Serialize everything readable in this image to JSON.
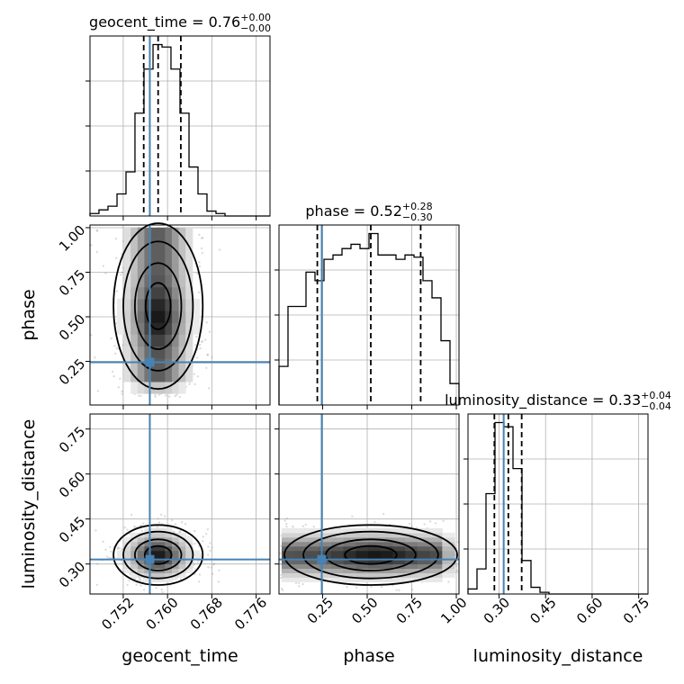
{
  "chart_data": {
    "type": "corner",
    "parameters": [
      "geocent_time",
      "phase",
      "luminosity_distance"
    ],
    "truths": {
      "geocent_time": 0.7568,
      "phase": 0.245,
      "luminosity_distance": 0.315
    },
    "colors": {
      "truth": "#4682b4",
      "contour": "#000000",
      "hist": "#000000"
    },
    "grid": true,
    "diagonal": [
      {
        "param": "geocent_time",
        "title_prefix": "geocent_time = 0.76",
        "title_plus": "+0.00",
        "title_minus": "−0.00",
        "median": 0.7583,
        "q16": 0.7557,
        "q84": 0.7624,
        "range": [
          0.746,
          0.7785
        ],
        "hist_bins": [
          0.746,
          0.74762,
          0.74925,
          0.75088,
          0.7525,
          0.75412,
          0.75575,
          0.75738,
          0.759,
          0.76062,
          0.76225,
          0.76388,
          0.7655,
          0.76712,
          0.76875,
          0.77038,
          0.772,
          0.77362,
          0.77525,
          0.77688,
          0.7785
        ],
        "hist_counts": [
          2,
          5,
          8,
          18,
          36,
          84,
          120,
          140,
          138,
          120,
          84,
          40,
          18,
          4,
          2,
          0,
          0,
          0,
          0,
          0
        ]
      },
      {
        "param": "phase",
        "title_prefix": "phase = 0.52",
        "title_plus": "+0.28",
        "title_minus": "−0.30",
        "median": 0.52,
        "q16": 0.22,
        "q84": 0.8,
        "range": [
          0.005,
          1.015
        ],
        "hist_bins": [
          0.005,
          0.0555,
          0.106,
          0.1565,
          0.207,
          0.2575,
          0.308,
          0.3585,
          0.409,
          0.4595,
          0.51,
          0.5605,
          0.611,
          0.6615,
          0.712,
          0.7625,
          0.813,
          0.8635,
          0.914,
          0.9645,
          1.015
        ],
        "hist_counts": [
          36,
          92,
          92,
          124,
          116,
          136,
          140,
          146,
          150,
          146,
          160,
          140,
          140,
          136,
          140,
          138,
          116,
          100,
          60,
          20
        ]
      },
      {
        "param": "luminosity_distance",
        "title_prefix": "luminosity_distance = 0.33",
        "title_plus": "+0.04",
        "title_minus": "−0.04",
        "median": 0.33,
        "q16": 0.285,
        "q84": 0.373,
        "range": [
          0.2,
          0.78
        ],
        "hist_bins": [
          0.2,
          0.229,
          0.258,
          0.287,
          0.316,
          0.345,
          0.374,
          0.403,
          0.432,
          0.461,
          0.49,
          0.519,
          0.548,
          0.577,
          0.606,
          0.635,
          0.664,
          0.693,
          0.722,
          0.751,
          0.78
        ],
        "hist_counts": [
          6,
          30,
          120,
          205,
          200,
          150,
          40,
          8,
          2,
          0,
          0,
          0,
          0,
          0,
          0,
          0,
          0,
          0,
          0,
          0
        ]
      }
    ],
    "axes": {
      "geocent_time": {
        "ticks": [
          0.752,
          0.76,
          0.768,
          0.776
        ],
        "tick_labels": [
          "0.752",
          "0.760",
          "0.768",
          "0.776"
        ],
        "label": "geocent_time"
      },
      "phase": {
        "ticks": [
          0.25,
          0.5,
          0.75,
          1.0
        ],
        "tick_labels": [
          "0.25",
          "0.50",
          "0.75",
          "1.00"
        ],
        "label": "phase"
      },
      "luminosity_distance": {
        "ticks": [
          0.3,
          0.45,
          0.6,
          0.75
        ],
        "tick_labels": [
          "0.30",
          "0.45",
          "0.60",
          "0.75"
        ],
        "label": "luminosity_distance"
      }
    },
    "posterior_2d": [
      {
        "x": "geocent_time",
        "y": "phase",
        "x_center": 0.7583,
        "x_sigma": 0.0031,
        "y_center": 0.55,
        "y_sigma": 0.32
      },
      {
        "x": "geocent_time",
        "y": "luminosity_distance",
        "x_center": 0.7583,
        "x_sigma": 0.0031,
        "y_center": 0.33,
        "y_sigma": 0.04
      },
      {
        "x": "phase",
        "y": "luminosity_distance",
        "x_center": 0.52,
        "x_sigma": 0.3,
        "y_center": 0.33,
        "y_sigma": 0.04
      }
    ]
  }
}
